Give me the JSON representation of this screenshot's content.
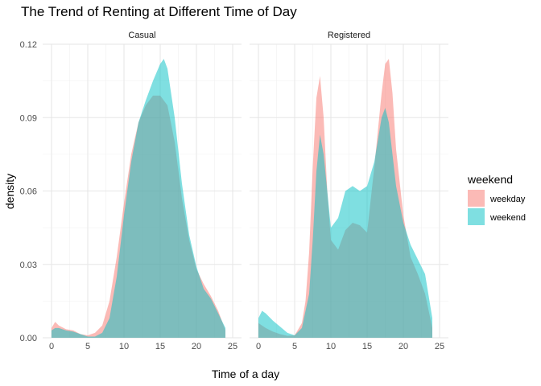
{
  "chart_data": {
    "type": "area",
    "title": "The Trend of Renting at Different Time of Day",
    "xlabel": "Time of a day",
    "ylabel": "density",
    "xlim": [
      0,
      25
    ],
    "ylim": [
      0,
      0.12
    ],
    "x_ticks": [
      "0",
      "5",
      "10",
      "15",
      "20",
      "25"
    ],
    "y_ticks": [
      "0.00",
      "0.03",
      "0.06",
      "0.09",
      "0.12"
    ],
    "grid": true,
    "legend": {
      "title": "weekend",
      "placement": "right",
      "entries": [
        {
          "label": "weekday",
          "color": "#F8766D"
        },
        {
          "label": "weekend",
          "color": "#00BFC4"
        }
      ]
    },
    "panels": [
      {
        "name": "Casual",
        "series": [
          {
            "name": "weekday",
            "color": "#F8766D",
            "x": [
              0,
              0.5,
              1,
              2,
              3,
              4,
              5,
              6,
              7,
              8,
              9,
              10,
              11,
              12,
              13,
              14,
              15,
              16,
              17,
              18,
              19,
              20,
              21,
              22,
              23,
              24
            ],
            "y": [
              0.004,
              0.0065,
              0.005,
              0.0035,
              0.003,
              0.0015,
              0.001,
              0.002,
              0.005,
              0.015,
              0.033,
              0.055,
              0.075,
              0.088,
              0.095,
              0.099,
              0.099,
              0.095,
              0.08,
              0.057,
              0.04,
              0.028,
              0.022,
              0.017,
              0.011,
              0.003
            ]
          },
          {
            "name": "weekend",
            "color": "#00BFC4",
            "x": [
              0,
              0.5,
              1,
              2,
              3,
              4,
              5,
              6,
              7,
              8,
              9,
              10,
              11,
              12,
              13,
              14,
              15,
              15.5,
              16,
              17,
              18,
              19,
              20,
              21,
              22,
              23,
              24
            ],
            "y": [
              0.003,
              0.004,
              0.004,
              0.003,
              0.0025,
              0.0015,
              0.0005,
              0.0005,
              0.002,
              0.008,
              0.025,
              0.05,
              0.072,
              0.088,
              0.097,
              0.105,
              0.112,
              0.114,
              0.11,
              0.09,
              0.063,
              0.042,
              0.029,
              0.02,
              0.016,
              0.01,
              0.004
            ]
          }
        ]
      },
      {
        "name": "Registered",
        "series": [
          {
            "name": "weekday",
            "color": "#F8766D",
            "x": [
              0,
              1,
              2,
              3,
              4,
              5,
              6,
              6.5,
              7,
              7.5,
              8,
              8.5,
              9,
              9.5,
              10,
              11,
              12,
              13,
              14,
              15,
              16,
              17,
              17.5,
              18,
              18.5,
              19,
              20,
              21,
              22,
              23,
              24
            ],
            "y": [
              0.006,
              0.004,
              0.0025,
              0.0015,
              0.0008,
              0.001,
              0.006,
              0.015,
              0.035,
              0.07,
              0.098,
              0.107,
              0.09,
              0.06,
              0.04,
              0.036,
              0.044,
              0.047,
              0.046,
              0.043,
              0.07,
              0.1,
              0.112,
              0.114,
              0.1,
              0.077,
              0.05,
              0.033,
              0.026,
              0.018,
              0.004
            ]
          },
          {
            "name": "weekend",
            "color": "#00BFC4",
            "x": [
              0,
              0.5,
              1,
              2,
              3,
              4,
              5,
              6,
              7,
              7.5,
              8,
              8.5,
              9,
              10,
              11,
              12,
              13,
              14,
              15,
              16,
              17,
              17.5,
              18,
              19,
              20,
              21,
              22,
              23,
              24
            ],
            "y": [
              0.008,
              0.011,
              0.01,
              0.007,
              0.0045,
              0.002,
              0.001,
              0.004,
              0.018,
              0.04,
              0.068,
              0.083,
              0.075,
              0.045,
              0.049,
              0.06,
              0.062,
              0.06,
              0.062,
              0.072,
              0.09,
              0.094,
              0.088,
              0.062,
              0.047,
              0.038,
              0.032,
              0.026,
              0.008
            ]
          }
        ]
      }
    ]
  }
}
